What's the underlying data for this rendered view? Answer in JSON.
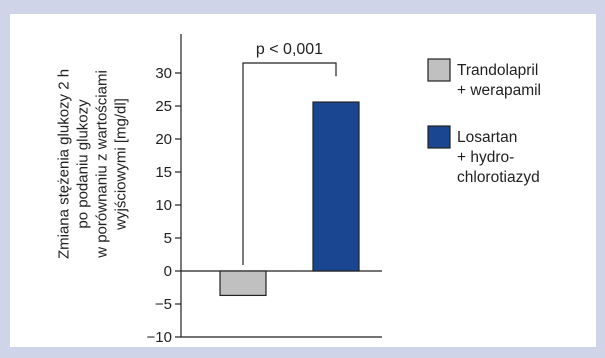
{
  "chart_data": {
    "type": "bar",
    "ylabel_lines": [
      "Zmiana stężenia glukozy 2 h",
      "po podaniu glukozy",
      "w porównaniu z wartościami",
      "wyjściowymi [mg/dl]"
    ],
    "ylim": [
      -10,
      35
    ],
    "yticks": [
      30,
      25,
      20,
      15,
      10,
      5,
      0,
      -5,
      -10
    ],
    "ytick_labels": [
      "30",
      "25",
      "20",
      "15",
      "10",
      "5",
      "0",
      "−5",
      "−10"
    ],
    "grid": false,
    "legend_position": "right",
    "series": [
      {
        "legend_lines": [
          "Trandolapril",
          "+ werapamil"
        ],
        "value": -3.7,
        "color": "#c0c0c0"
      },
      {
        "legend_lines": [
          "Losartan",
          "+ hydro-",
          "chlorotiazyd"
        ],
        "value": 25.6,
        "color": "#1a4590"
      }
    ],
    "annotation": "p < 0,001"
  }
}
